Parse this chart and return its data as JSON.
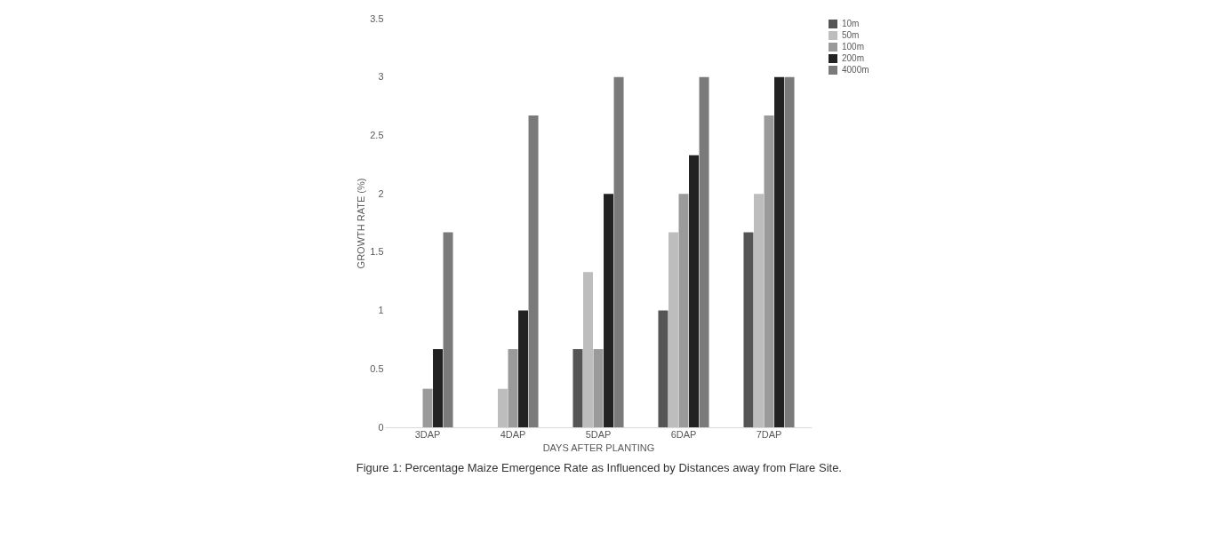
{
  "chart_data": {
    "type": "bar",
    "xlabel": "DAYS AFTER PLANTING",
    "ylabel": "GROWTH RATE (%)",
    "categories": [
      "3DAP",
      "4DAP",
      "5DAP",
      "6DAP",
      "7DAP"
    ],
    "series": [
      {
        "name": "10m",
        "color": "#555555",
        "values": [
          0,
          0,
          0.67,
          1,
          1.67
        ]
      },
      {
        "name": "50m",
        "color": "#bdbdbd",
        "values": [
          0,
          0.33,
          1.33,
          1.67,
          2
        ]
      },
      {
        "name": "100m",
        "color": "#9a9a9a",
        "values": [
          0.33,
          0.67,
          0.67,
          2,
          2.67
        ]
      },
      {
        "name": "200m",
        "color": "#222222",
        "values": [
          0.67,
          1,
          2,
          2.33,
          3
        ]
      },
      {
        "name": "4000m",
        "color": "#7a7a7a",
        "values": [
          1.67,
          2.67,
          3,
          3,
          3
        ]
      }
    ],
    "ylim": [
      0,
      3.5
    ],
    "yticks": [
      0,
      0.5,
      1,
      1.5,
      2,
      2.5,
      3,
      3.5
    ],
    "grid": false,
    "legend": "right",
    "annotations": [
      "Figure 1: Percentage Maize Emergence Rate as Influenced by Distances away from Flare Site."
    ]
  }
}
